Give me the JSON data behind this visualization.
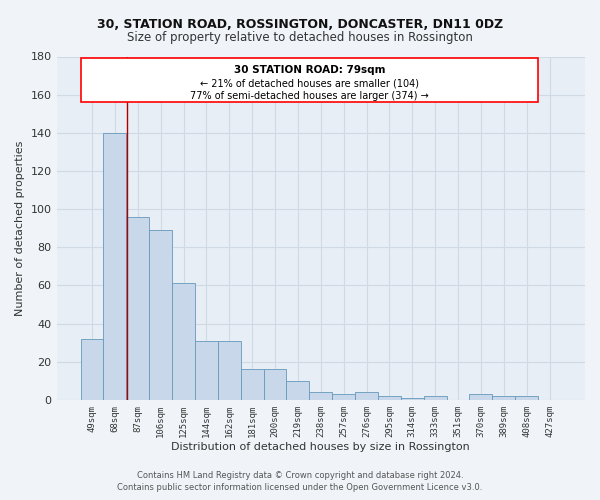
{
  "title1": "30, STATION ROAD, ROSSINGTON, DONCASTER, DN11 0DZ",
  "title2": "Size of property relative to detached houses in Rossington",
  "xlabel": "Distribution of detached houses by size in Rossington",
  "ylabel": "Number of detached properties",
  "categories": [
    "49sqm",
    "68sqm",
    "87sqm",
    "106sqm",
    "125sqm",
    "144sqm",
    "162sqm",
    "181sqm",
    "200sqm",
    "219sqm",
    "238sqm",
    "257sqm",
    "276sqm",
    "295sqm",
    "314sqm",
    "333sqm",
    "351sqm",
    "370sqm",
    "389sqm",
    "408sqm",
    "427sqm"
  ],
  "values": [
    32,
    140,
    96,
    89,
    61,
    31,
    31,
    16,
    16,
    10,
    4,
    3,
    4,
    2,
    1,
    2,
    0,
    3,
    2,
    2,
    0
  ],
  "bar_color": "#c8d8ea",
  "bar_edge_color": "#6699bb",
  "ax_bg_color": "#e8eef5",
  "fig_bg_color": "#f0f4f8",
  "grid_color": "#d0dae4",
  "red_line_x": 1.55,
  "annotation_title": "30 STATION ROAD: 79sqm",
  "annotation_line1": "← 21% of detached houses are smaller (104)",
  "annotation_line2": "77% of semi-detached houses are larger (374) →",
  "footer1": "Contains HM Land Registry data © Crown copyright and database right 2024.",
  "footer2": "Contains public sector information licensed under the Open Government Licence v3.0.",
  "ylim": [
    0,
    180
  ],
  "yticks": [
    0,
    20,
    40,
    60,
    80,
    100,
    120,
    140,
    160,
    180
  ]
}
